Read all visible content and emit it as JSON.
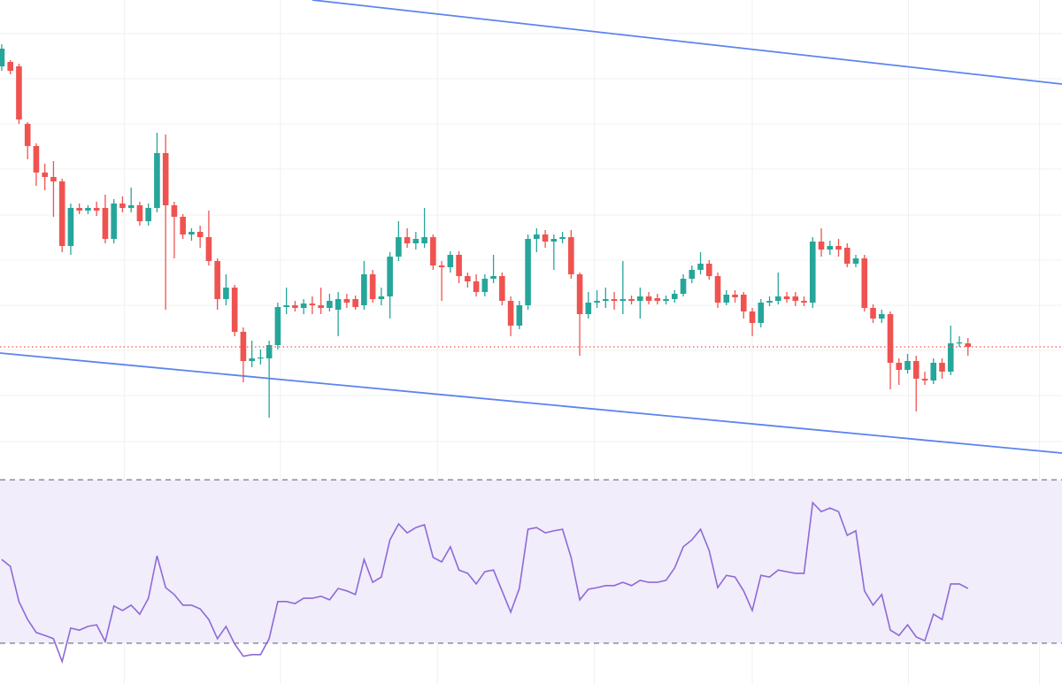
{
  "chart_data": {
    "type": "candlestick",
    "xlim": [
      -0.2,
      122.9
    ],
    "xticks": [
      14.2,
      32.3,
      50.5,
      68.7,
      87,
      105.1,
      120.3
    ],
    "ylim": [
      0,
      520
    ],
    "yticks": [
      21,
      73,
      124,
      175,
      226,
      277,
      329,
      380,
      431,
      482
    ],
    "grid": true,
    "up_color": "#26a69a",
    "down_color": "#ef5350",
    "open": [
      445,
      450,
      445,
      380,
      355,
      325,
      320,
      315,
      242,
      285,
      282,
      285,
      285,
      250,
      290,
      285,
      288,
      270,
      285,
      347,
      288,
      275,
      255,
      258,
      252,
      225,
      182,
      195,
      145,
      112,
      115,
      115,
      130,
      173,
      175,
      172,
      177,
      175,
      172,
      170,
      182,
      182,
      175,
      210,
      182,
      185,
      230,
      252,
      245,
      245,
      252,
      220,
      218,
      232,
      208,
      202,
      190,
      205,
      208,
      180,
      152,
      175,
      250,
      255,
      247,
      250,
      252,
      210,
      165,
      178,
      180,
      182,
      180,
      182,
      180,
      185,
      183,
      180,
      182,
      188,
      205,
      215,
      222,
      208,
      178,
      187,
      187,
      168,
      155,
      178,
      180,
      185,
      185,
      180,
      178,
      247,
      238,
      242,
      240,
      222,
      228,
      172,
      160,
      165,
      110,
      102,
      112,
      92,
      90,
      110,
      100,
      132,
      132
    ],
    "high": [
      470,
      452,
      448,
      382,
      358,
      335,
      338,
      318,
      290,
      290,
      288,
      292,
      300,
      295,
      298,
      308,
      292,
      290,
      370,
      368,
      292,
      278,
      262,
      265,
      282,
      228,
      210,
      198,
      150,
      135,
      125,
      135,
      178,
      195,
      180,
      182,
      185,
      195,
      188,
      190,
      188,
      186,
      225,
      215,
      195,
      235,
      270,
      262,
      258,
      285,
      255,
      225,
      236,
      236,
      212,
      210,
      210,
      232,
      212,
      185,
      180,
      255,
      262,
      260,
      255,
      258,
      260,
      212,
      190,
      192,
      195,
      190,
      225,
      186,
      195,
      190,
      188,
      186,
      192,
      210,
      220,
      235,
      226,
      212,
      192,
      192,
      190,
      172,
      182,
      185,
      212,
      190,
      190,
      185,
      252,
      262,
      248,
      250,
      245,
      232,
      232,
      176,
      170,
      168,
      115,
      120,
      118,
      100,
      115,
      115,
      152,
      140,
      138
    ],
    "low": [
      440,
      436,
      380,
      340,
      310,
      305,
      275,
      235,
      232,
      278,
      278,
      276,
      245,
      245,
      280,
      280,
      265,
      265,
      280,
      170,
      228,
      250,
      248,
      240,
      220,
      170,
      175,
      140,
      88,
      105,
      108,
      48,
      125,
      165,
      168,
      165,
      165,
      165,
      168,
      140,
      172,
      170,
      170,
      178,
      175,
      160,
      225,
      240,
      238,
      240,
      215,
      180,
      212,
      200,
      195,
      185,
      185,
      200,
      175,
      140,
      148,
      170,
      235,
      240,
      215,
      245,
      205,
      118,
      160,
      172,
      172,
      170,
      165,
      176,
      160,
      176,
      176,
      176,
      178,
      185,
      200,
      210,
      204,
      172,
      175,
      178,
      160,
      140,
      150,
      174,
      176,
      178,
      174,
      174,
      172,
      230,
      232,
      230,
      218,
      218,
      168,
      155,
      155,
      80,
      85,
      98,
      55,
      85,
      86,
      92,
      96,
      128,
      118
    ],
    "close": [
      465,
      440,
      385,
      355,
      325,
      320,
      315,
      242,
      285,
      282,
      285,
      282,
      250,
      290,
      285,
      288,
      270,
      285,
      347,
      288,
      275,
      255,
      258,
      252,
      225,
      182,
      195,
      145,
      112,
      115,
      116,
      130,
      173,
      175,
      172,
      177,
      175,
      172,
      180,
      182,
      178,
      173,
      210,
      182,
      185,
      230,
      252,
      245,
      250,
      252,
      220,
      218,
      232,
      208,
      202,
      190,
      205,
      208,
      180,
      152,
      175,
      250,
      255,
      247,
      250,
      252,
      210,
      165,
      178,
      180,
      182,
      180,
      182,
      180,
      185,
      180,
      180,
      182,
      188,
      205,
      215,
      222,
      208,
      178,
      187,
      184,
      168,
      155,
      178,
      180,
      185,
      182,
      180,
      178,
      247,
      238,
      242,
      238,
      222,
      228,
      172,
      160,
      165,
      110,
      102,
      112,
      92,
      90,
      110,
      100,
      132,
      133,
      128
    ],
    "price_line": 128,
    "price_line_color": "#ef5350",
    "trend_lines": [
      {
        "color": "#5b84ee",
        "x": [
          36,
          122.9
        ],
        "y": [
          520,
          425
        ]
      },
      {
        "color": "#5b84ee",
        "x": [
          -0.2,
          122.9
        ],
        "y": [
          121,
          8
        ]
      }
    ],
    "indicator": {
      "type": "line",
      "color": "#8e6ad6",
      "ylim": [
        20,
        72
      ],
      "bands": [
        30,
        70
      ],
      "band_color": "#f1edfb",
      "values": [
        50.5,
        48.8,
        40.2,
        35.8,
        32.6,
        31.9,
        31.1,
        25.5,
        33.7,
        33.2,
        34.1,
        34.5,
        30.4,
        39.1,
        38,
        39.3,
        37.1,
        41,
        51.4,
        43.6,
        41.9,
        39.3,
        39.3,
        38.4,
        35.8,
        31.1,
        34.1,
        29.8,
        26.8,
        27.2,
        27.2,
        31.1,
        40.2,
        40.2,
        39.7,
        41,
        41,
        41.5,
        40.6,
        43.4,
        42.8,
        41.9,
        50.5,
        44.9,
        46.2,
        55.3,
        59.2,
        57,
        58.3,
        59,
        51,
        49.9,
        53.6,
        47.9,
        47.1,
        44.5,
        47.5,
        47.9,
        42.8,
        37.6,
        43.4,
        57.9,
        58.3,
        57,
        57.5,
        57.9,
        51,
        40.6,
        43.2,
        43.6,
        44.1,
        44.1,
        44.9,
        44.1,
        45.4,
        44.9,
        44.9,
        45.4,
        48.4,
        53.6,
        55.3,
        57.9,
        52.7,
        43.6,
        46.6,
        46.2,
        42.8,
        38,
        46.6,
        46.2,
        47.9,
        47.5,
        47.1,
        47.1,
        64.4,
        62.2,
        63.1,
        62.2,
        56.4,
        57.5,
        42.8,
        39.3,
        41.9,
        33.2,
        31.9,
        34.5,
        31.5,
        30.6,
        37.1,
        35.8,
        44.5,
        44.5,
        43.4
      ]
    }
  }
}
